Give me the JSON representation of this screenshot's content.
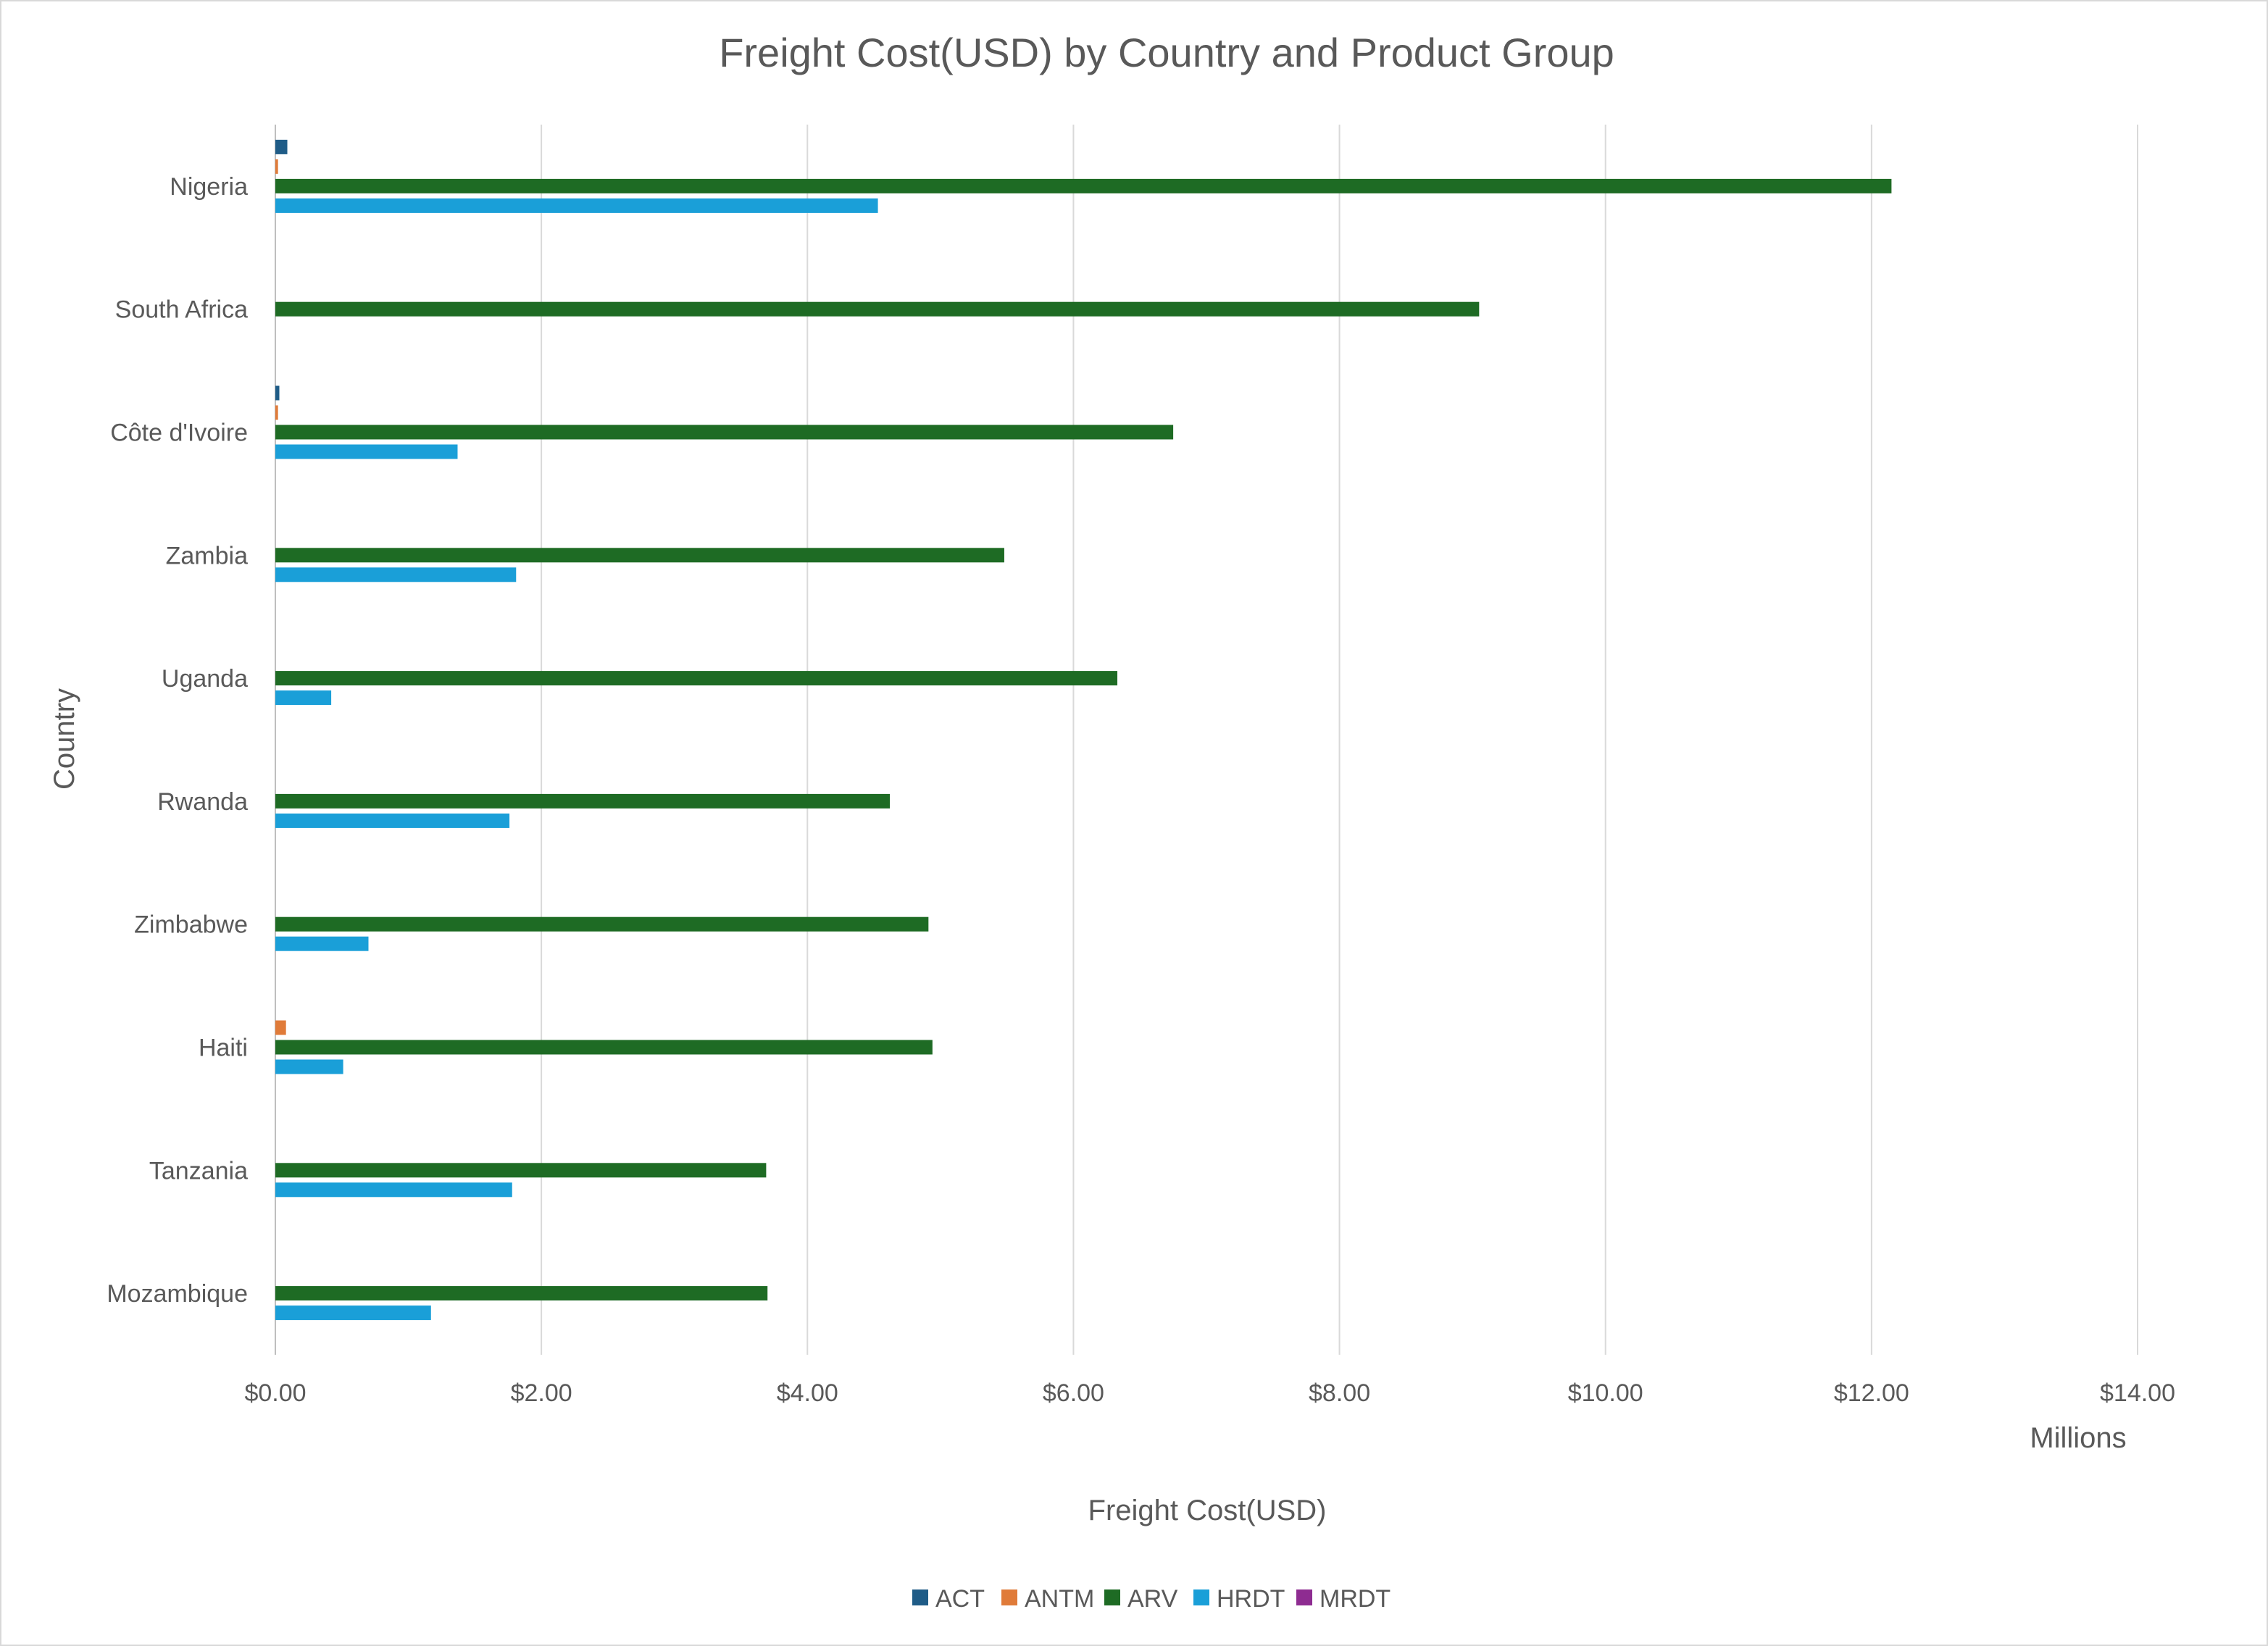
{
  "chart_data": {
    "type": "bar",
    "orientation": "horizontal",
    "title": "Freight Cost(USD) by Country and Product Group",
    "xlabel": "Freight Cost(USD)",
    "ylabel": "Country",
    "x_unit_label": "Millions",
    "xlim": [
      0,
      14
    ],
    "x_ticks": [
      0,
      2,
      4,
      6,
      8,
      10,
      12,
      14
    ],
    "x_tick_labels": [
      "$0.00",
      "$2.00",
      "$4.00",
      "$6.00",
      "$8.00",
      "$10.00",
      "$12.00",
      "$14.00"
    ],
    "grid": true,
    "legend_position": "bottom",
    "categories": [
      "Nigeria",
      "South Africa",
      "Côte d'Ivoire",
      "Zambia",
      "Uganda",
      "Rwanda",
      "Zimbabwe",
      "Haiti",
      "Tanzania",
      "Mozambique"
    ],
    "series": [
      {
        "name": "ACT",
        "color": "#1f5c87",
        "values": [
          0.09,
          0,
          0.03,
          0,
          0,
          0,
          0,
          0,
          0,
          0
        ]
      },
      {
        "name": "ANTM",
        "color": "#e07b39",
        "values": [
          0.02,
          0,
          0.02,
          0,
          0,
          0,
          0,
          0.08,
          0,
          0
        ]
      },
      {
        "name": "ARV",
        "color": "#1e6b24",
        "values": [
          12.15,
          9.05,
          6.75,
          5.48,
          6.33,
          4.62,
          4.91,
          4.94,
          3.69,
          3.7
        ]
      },
      {
        "name": "HRDT",
        "color": "#1a9fd8",
        "values": [
          4.53,
          0,
          1.37,
          1.81,
          0.42,
          1.76,
          0.7,
          0.51,
          1.78,
          1.17
        ]
      },
      {
        "name": "MRDT",
        "color": "#8e2c91",
        "values": [
          0,
          0,
          0,
          0,
          0,
          0,
          0,
          0,
          0,
          0
        ]
      }
    ]
  }
}
